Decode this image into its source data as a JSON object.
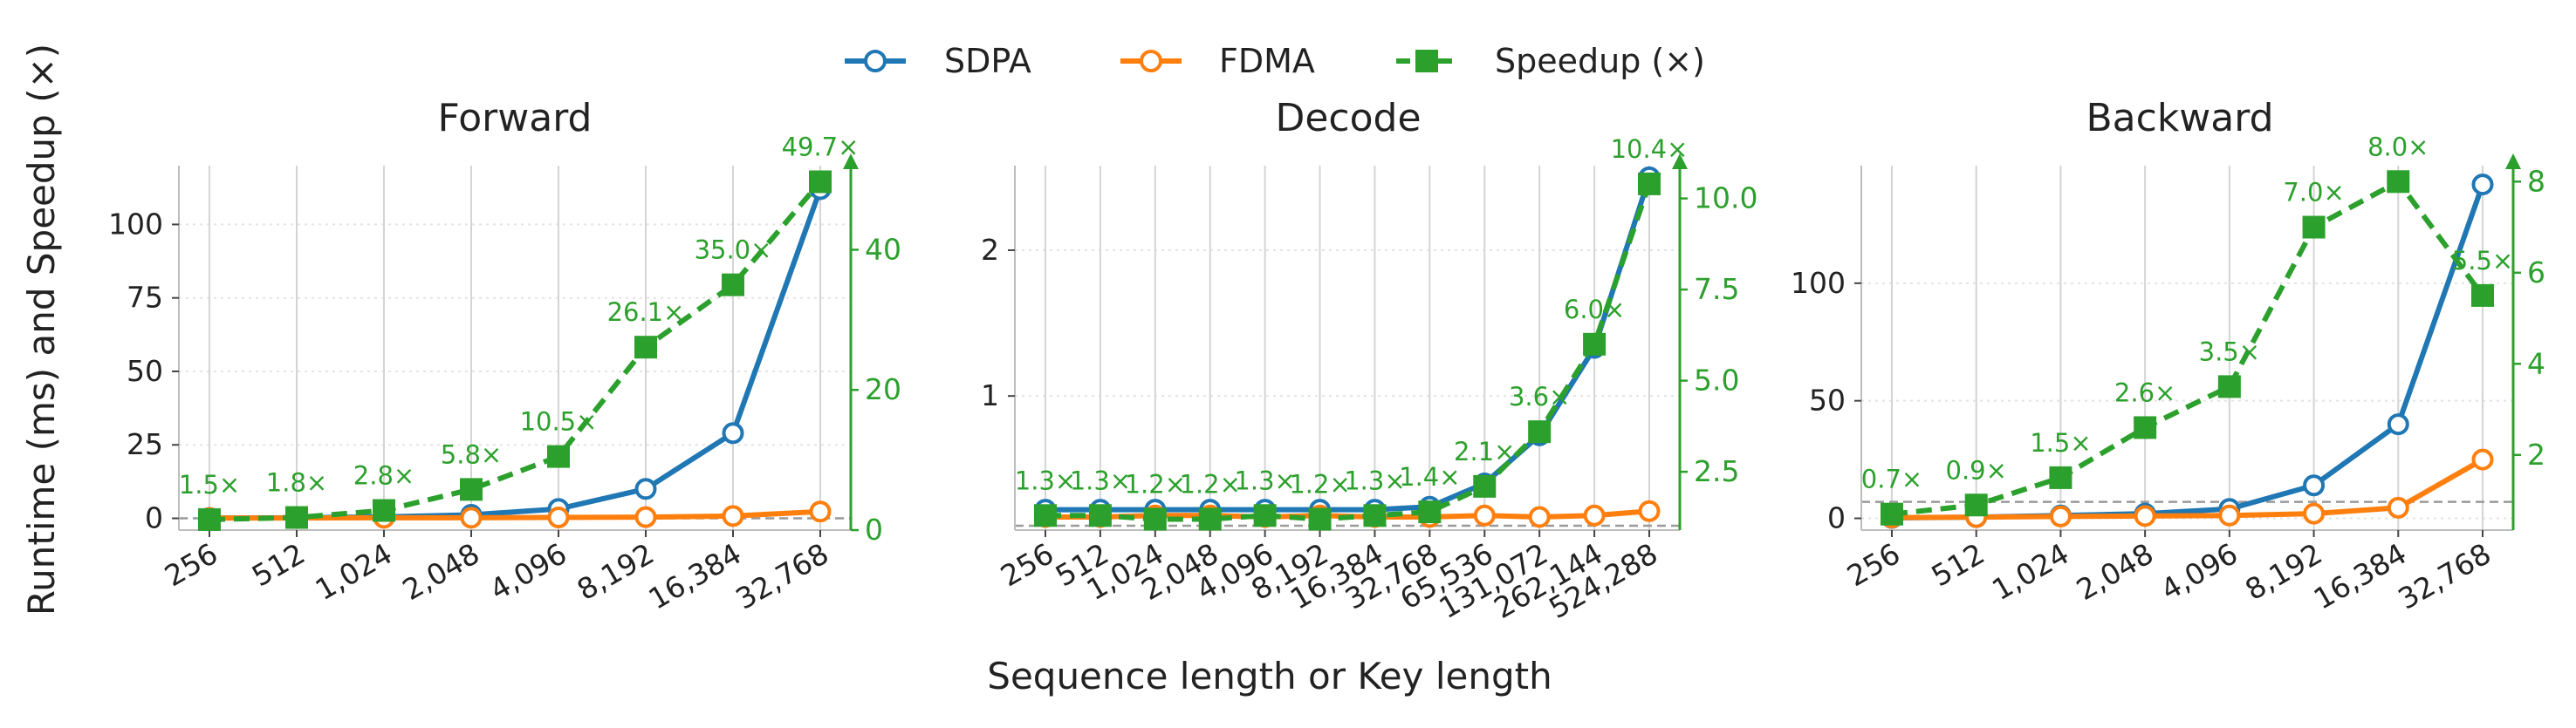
{
  "legend": [
    {
      "name": "SDPA",
      "color": "#1f77b4",
      "marker": "circle-open",
      "dash": false
    },
    {
      "name": "FDMA",
      "color": "#ff7f0e",
      "marker": "circle-open",
      "dash": false
    },
    {
      "name": "Speedup (×)",
      "color": "#2ca02c",
      "marker": "square",
      "dash": true
    }
  ],
  "ylabel": "Runtime (ms) and Speedup (×)",
  "xlabel": "Sequence length or Key length",
  "chart_data": [
    {
      "type": "line",
      "title": "Forward",
      "x": [
        "256",
        "512",
        "1,024",
        "2,048",
        "4,096",
        "8,192",
        "16,384",
        "32,768"
      ],
      "ylim": [
        -4,
        120
      ],
      "y_ticks": [
        "0",
        "25",
        "50",
        "75",
        "100"
      ],
      "y_tick_values": [
        0,
        25,
        50,
        75,
        100
      ],
      "y2lim": [
        0,
        52
      ],
      "y2_ticks": [
        "0",
        "20",
        "40"
      ],
      "y2_tick_values": [
        0,
        20,
        40
      ],
      "baseline_y": 0,
      "series": [
        {
          "name": "SDPA",
          "axis": "left",
          "values": [
            0.1,
            0.2,
            0.5,
            1.2,
            3.2,
            10.0,
            29.0,
            112.0
          ]
        },
        {
          "name": "FDMA",
          "axis": "left",
          "values": [
            0.1,
            0.1,
            0.2,
            0.2,
            0.3,
            0.4,
            0.8,
            2.3
          ]
        },
        {
          "name": "Speedup (×)",
          "axis": "right",
          "values": [
            1.5,
            1.8,
            2.8,
            5.8,
            10.5,
            26.1,
            35.0,
            49.7
          ]
        }
      ],
      "speedup_labels": [
        "1.5×",
        "1.8×",
        "2.8×",
        "5.8×",
        "10.5×",
        "26.1×",
        "35.0×",
        "49.7×"
      ]
    },
    {
      "type": "line",
      "title": "Decode",
      "x": [
        "256",
        "512",
        "1,024",
        "2,048",
        "4,096",
        "8,192",
        "16,384",
        "32,768",
        "65,536",
        "131,072",
        "262,144",
        "524,288"
      ],
      "ylim": [
        0.08,
        2.58
      ],
      "y_ticks": [
        "1",
        "2"
      ],
      "y_tick_values": [
        1,
        2
      ],
      "y2lim": [
        0.9,
        10.9
      ],
      "y2_ticks": [
        "2.5",
        "5.0",
        "7.5",
        "10.0"
      ],
      "y2_tick_values": [
        2.5,
        5.0,
        7.5,
        10.0
      ],
      "baseline_y": 0.11,
      "series": [
        {
          "name": "SDPA",
          "axis": "left",
          "values": [
            0.22,
            0.22,
            0.22,
            0.22,
            0.22,
            0.22,
            0.22,
            0.24,
            0.4,
            0.73,
            1.33,
            2.5
          ]
        },
        {
          "name": "FDMA",
          "axis": "left",
          "values": [
            0.17,
            0.17,
            0.18,
            0.18,
            0.17,
            0.18,
            0.17,
            0.17,
            0.18,
            0.17,
            0.18,
            0.21
          ]
        },
        {
          "name": "Speedup (×)",
          "axis": "right",
          "values": [
            1.3,
            1.3,
            1.2,
            1.2,
            1.3,
            1.2,
            1.3,
            1.4,
            2.1,
            3.6,
            6.0,
            10.4
          ]
        }
      ],
      "speedup_labels": [
        "1.3×",
        "1.3×",
        "1.2×",
        "1.2×",
        "1.3×",
        "1.2×",
        "1.3×",
        "1.4×",
        "2.1×",
        "3.6×",
        "6.0×",
        "10.4×"
      ]
    },
    {
      "type": "line",
      "title": "Backward",
      "x": [
        "256",
        "512",
        "1,024",
        "2,048",
        "4,096",
        "8,192",
        "16,384",
        "32,768"
      ],
      "ylim": [
        -5,
        150
      ],
      "y_ticks": [
        "0",
        "50",
        "100"
      ],
      "y_tick_values": [
        0,
        50,
        100
      ],
      "y2lim": [
        0.35,
        8.35
      ],
      "y2_ticks": [
        "2",
        "4",
        "6",
        "8"
      ],
      "y2_tick_values": [
        2,
        4,
        6,
        8
      ],
      "baseline_y": 7,
      "series": [
        {
          "name": "SDPA",
          "axis": "left",
          "values": [
            0.2,
            0.5,
            1.2,
            2.0,
            4.0,
            14.0,
            40.0,
            142.0
          ]
        },
        {
          "name": "FDMA",
          "axis": "left",
          "values": [
            0.3,
            0.5,
            0.8,
            1.0,
            1.2,
            2.0,
            4.5,
            25.0
          ]
        },
        {
          "name": "Speedup (×)",
          "axis": "right",
          "values": [
            0.7,
            0.9,
            1.5,
            2.6,
            3.5,
            7.0,
            8.0,
            5.5
          ]
        }
      ],
      "speedup_labels": [
        "0.7×",
        "0.9×",
        "1.5×",
        "2.6×",
        "3.5×",
        "7.0×",
        "8.0×",
        "5.5×"
      ]
    }
  ]
}
